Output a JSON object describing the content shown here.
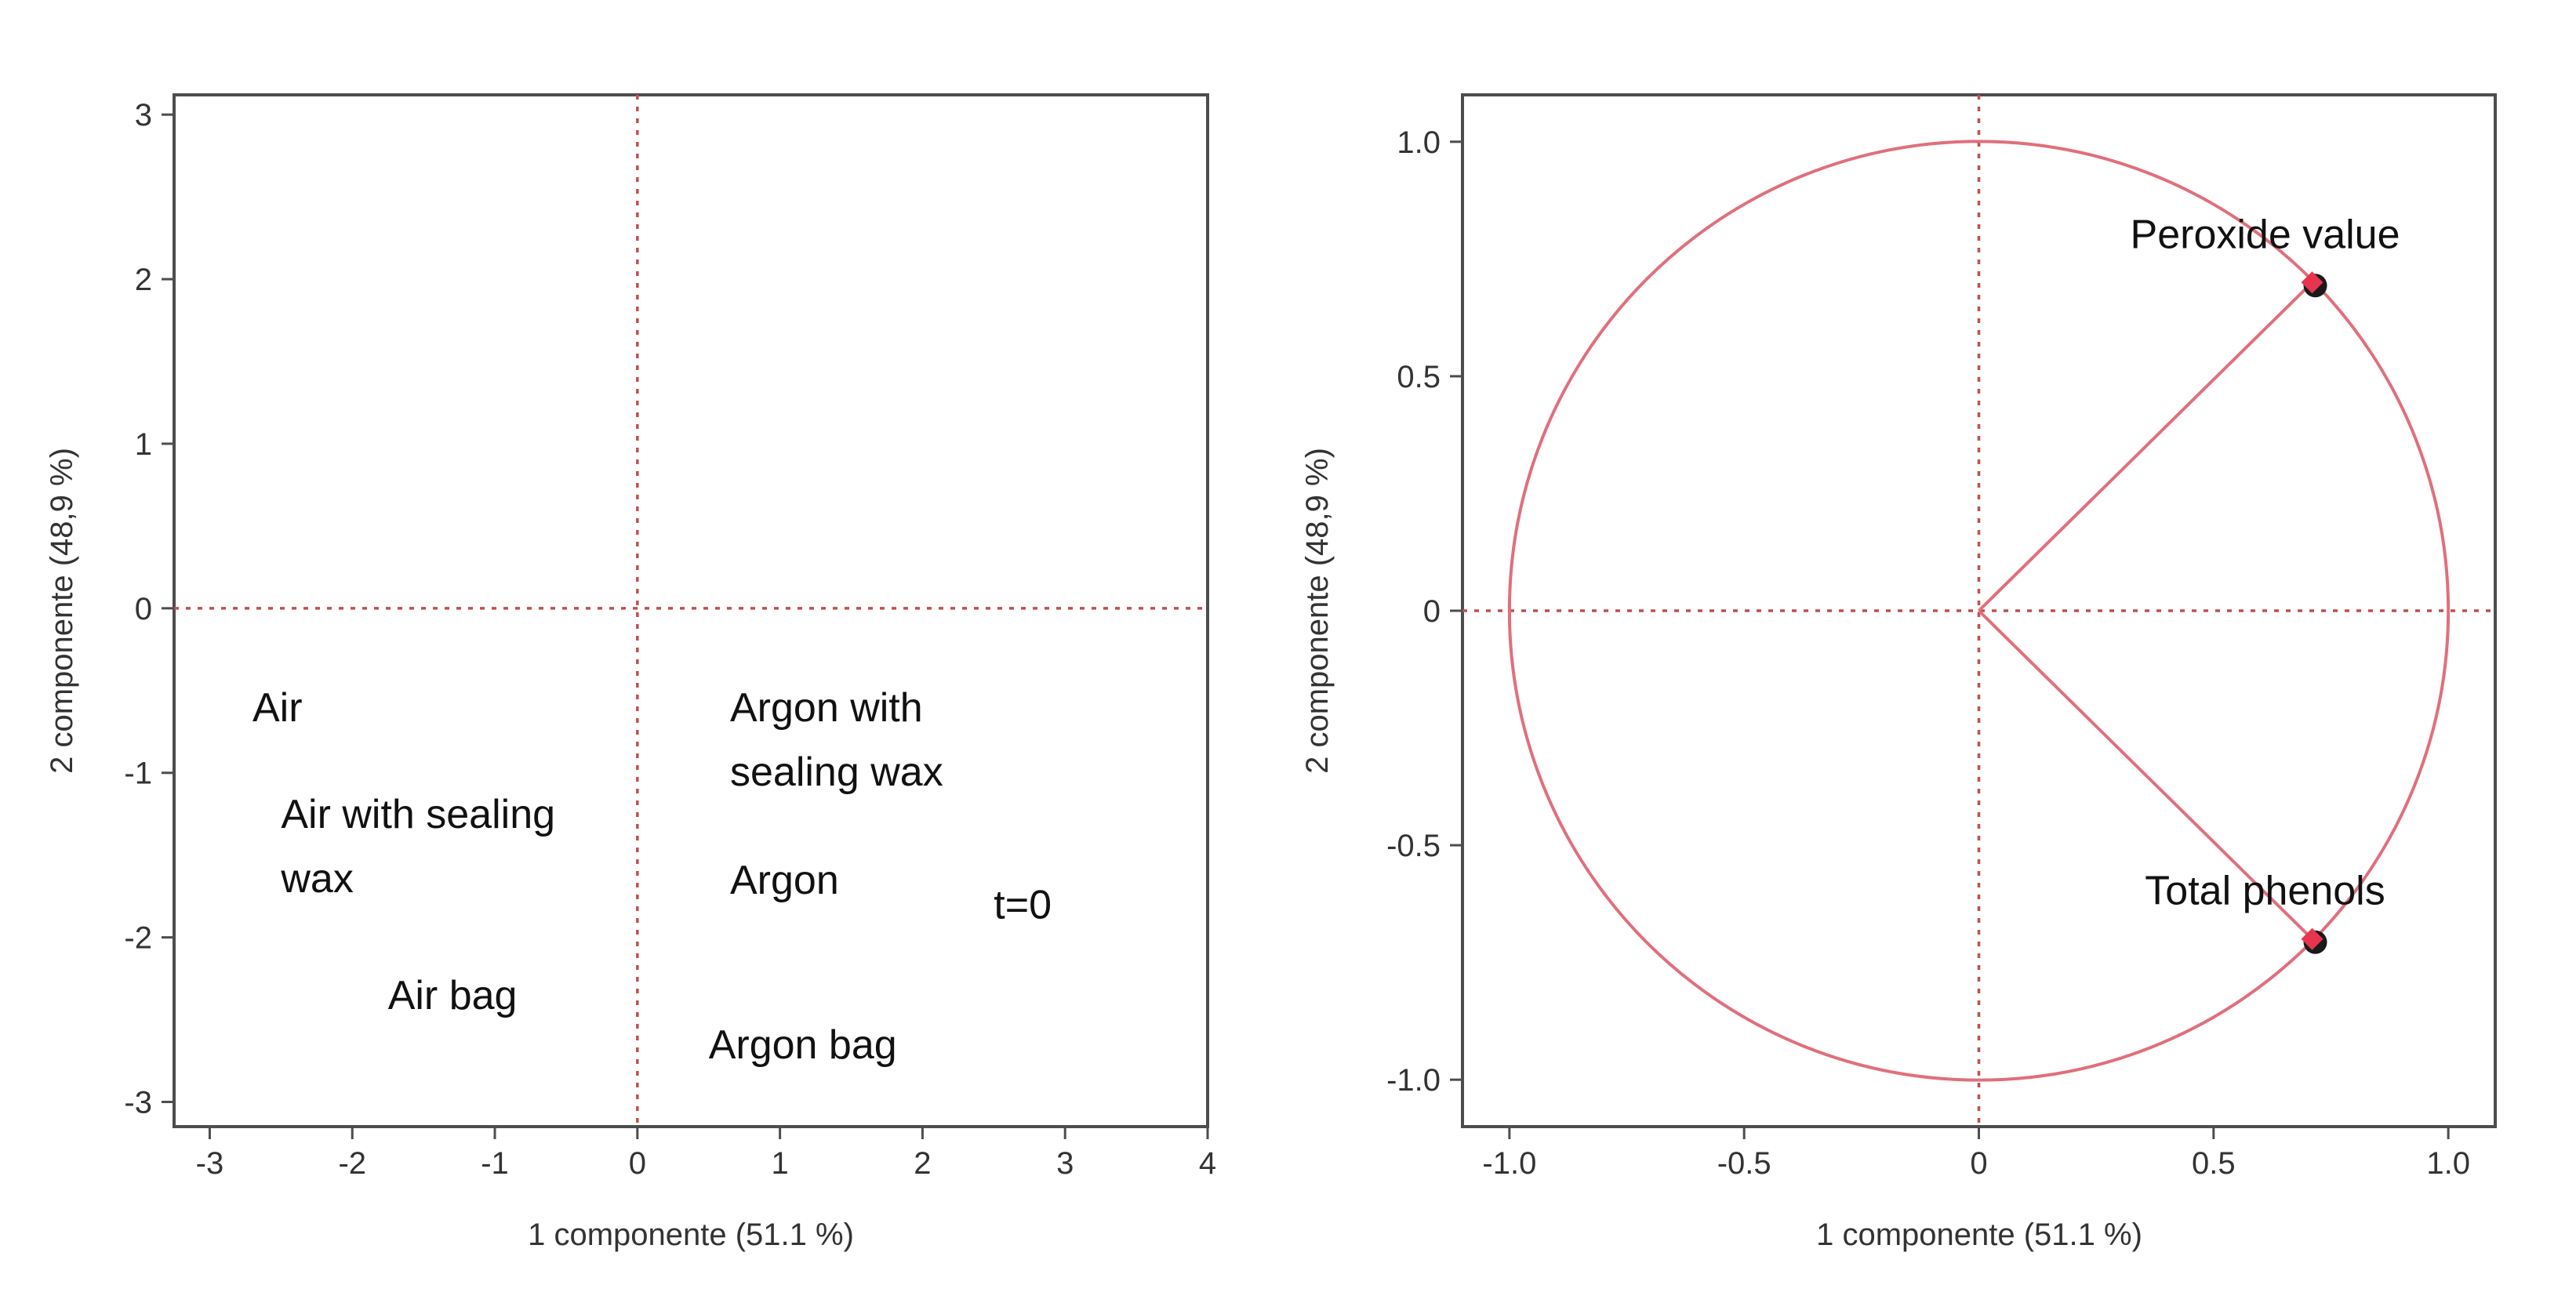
{
  "chart_data": [
    {
      "type": "scatter",
      "xlabel": "1 componente  (51.1 %)",
      "ylabel": "2 componente  (48,9 %)",
      "xlim": [
        -3.25,
        4.0
      ],
      "ylim": [
        -3.15,
        3.12
      ],
      "xticks": [
        -3,
        -2,
        -1,
        0,
        1,
        2,
        3,
        4
      ],
      "yticks": [
        -3,
        -2,
        -1,
        0,
        1,
        2,
        3
      ],
      "points": [
        {
          "lines": [
            "Air"
          ],
          "x": -2.7,
          "y": -0.6
        },
        {
          "lines": [
            "Air with sealing",
            "wax"
          ],
          "x": -2.5,
          "y": -1.25
        },
        {
          "lines": [
            "Air bag"
          ],
          "x": -1.75,
          "y": -2.35
        },
        {
          "lines": [
            "Argon with",
            "sealing wax"
          ],
          "x": 0.65,
          "y": -0.6
        },
        {
          "lines": [
            "Argon"
          ],
          "x": 0.65,
          "y": -1.65
        },
        {
          "lines": [
            "Argon bag"
          ],
          "x": 0.5,
          "y": -2.65
        },
        {
          "lines": [
            "t=0"
          ],
          "x": 2.5,
          "y": -1.8
        }
      ],
      "reference_lines": {
        "x": 0,
        "y": 0
      }
    },
    {
      "type": "scatter",
      "subtype": "loading-plot",
      "xlabel": "1 componente  (51.1 %)",
      "ylabel": "2 componente  (48,9 %)",
      "xlim": [
        -1.1,
        1.1
      ],
      "ylim": [
        -1.1,
        1.1
      ],
      "xticks": [
        "-1.0",
        "-0.5",
        "0",
        "0.5",
        "1.0"
      ],
      "yticks": [
        "-1.0",
        "-0.5",
        "0",
        "0.5",
        "1.0"
      ],
      "unit_circle": true,
      "vectors": [
        {
          "name": "Peroxide value",
          "x": 0.71,
          "y": 0.7
        },
        {
          "name": "Total phenols",
          "x": 0.71,
          "y": -0.7
        }
      ],
      "reference_lines": {
        "x": 0,
        "y": 0
      },
      "colors": {
        "line": "#e06f7c",
        "marker": "#1a1a1a",
        "marker_highlight": "#e8344e"
      }
    }
  ]
}
